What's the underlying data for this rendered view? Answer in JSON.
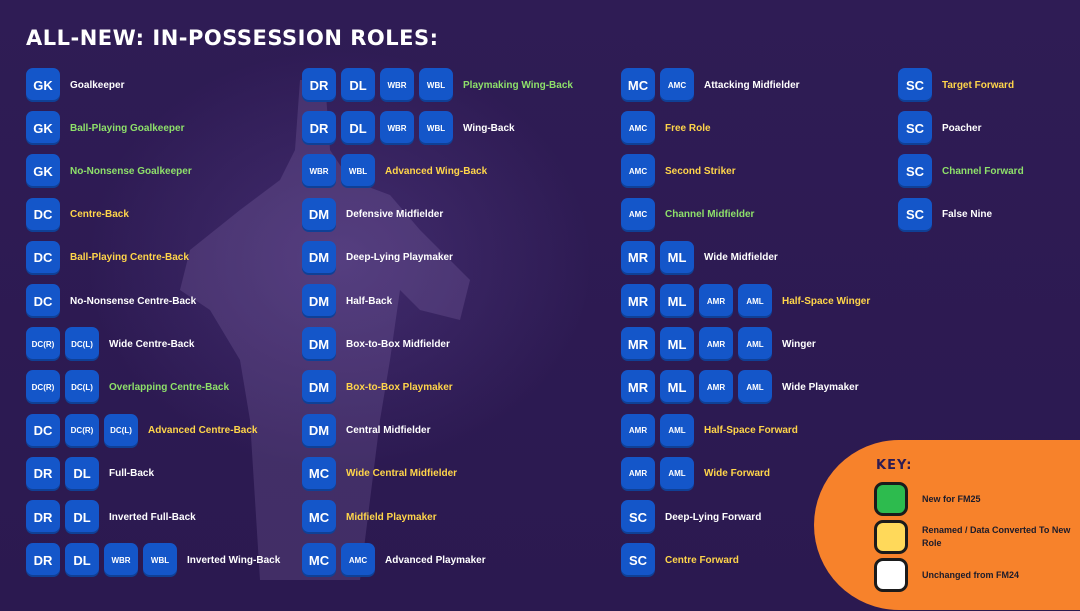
{
  "title": "ALL-NEW: IN-POSSESSION ROLES:",
  "colors": {
    "background": "#2e1b52",
    "badge": "#1456c9",
    "new": "#8ee06a",
    "renamed": "#ffd54a",
    "unchanged": "#ffffff",
    "key_panel": "#f7822b"
  },
  "columns": [
    [
      {
        "badges": [
          "GK"
        ],
        "label": "Goalkeeper",
        "status": "unchanged"
      },
      {
        "badges": [
          "GK"
        ],
        "label": "Ball-Playing Goalkeeper",
        "status": "new"
      },
      {
        "badges": [
          "GK"
        ],
        "label": "No-Nonsense Goalkeeper",
        "status": "new"
      },
      {
        "badges": [
          "DC"
        ],
        "label": "Centre-Back",
        "status": "renamed"
      },
      {
        "badges": [
          "DC"
        ],
        "label": "Ball-Playing Centre-Back",
        "status": "renamed"
      },
      {
        "badges": [
          "DC"
        ],
        "label": "No-Nonsense Centre-Back",
        "status": "unchanged"
      },
      {
        "badges": [
          "DC(R)",
          "DC(L)"
        ],
        "label": "Wide Centre-Back",
        "status": "unchanged"
      },
      {
        "badges": [
          "DC(R)",
          "DC(L)"
        ],
        "label": "Overlapping Centre-Back",
        "status": "new"
      },
      {
        "badges": [
          "DC",
          "DC(R)",
          "DC(L)"
        ],
        "label": "Advanced Centre-Back",
        "status": "renamed"
      },
      {
        "badges": [
          "DR",
          "DL"
        ],
        "label": "Full-Back",
        "status": "unchanged"
      },
      {
        "badges": [
          "DR",
          "DL"
        ],
        "label": "Inverted Full-Back",
        "status": "unchanged"
      },
      {
        "badges": [
          "DR",
          "DL",
          "WBR",
          "WBL"
        ],
        "label": "Inverted Wing-Back",
        "status": "unchanged"
      }
    ],
    [
      {
        "badges": [
          "DR",
          "DL",
          "WBR",
          "WBL"
        ],
        "label": "Playmaking Wing-Back",
        "status": "new"
      },
      {
        "badges": [
          "DR",
          "DL",
          "WBR",
          "WBL"
        ],
        "label": "Wing-Back",
        "status": "unchanged"
      },
      {
        "badges": [
          "WBR",
          "WBL"
        ],
        "label": "Advanced Wing-Back",
        "status": "renamed"
      },
      {
        "badges": [
          "DM"
        ],
        "label": "Defensive Midfielder",
        "status": "unchanged"
      },
      {
        "badges": [
          "DM"
        ],
        "label": "Deep-Lying Playmaker",
        "status": "unchanged"
      },
      {
        "badges": [
          "DM"
        ],
        "label": "Half-Back",
        "status": "unchanged"
      },
      {
        "badges": [
          "DM"
        ],
        "label": "Box-to-Box Midfielder",
        "status": "unchanged"
      },
      {
        "badges": [
          "DM"
        ],
        "label": "Box-to-Box Playmaker",
        "status": "renamed"
      },
      {
        "badges": [
          "DM"
        ],
        "label": "Central Midfielder",
        "status": "unchanged"
      },
      {
        "badges": [
          "MC"
        ],
        "label": "Wide Central Midfielder",
        "status": "renamed"
      },
      {
        "badges": [
          "MC"
        ],
        "label": "Midfield Playmaker",
        "status": "renamed"
      },
      {
        "badges": [
          "MC",
          "AMC"
        ],
        "label": "Advanced Playmaker",
        "status": "unchanged"
      }
    ],
    [
      {
        "badges": [
          "MC",
          "AMC"
        ],
        "label": "Attacking Midfielder",
        "status": "unchanged"
      },
      {
        "badges": [
          "AMC"
        ],
        "label": "Free Role",
        "status": "renamed"
      },
      {
        "badges": [
          "AMC"
        ],
        "label": "Second Striker",
        "status": "renamed"
      },
      {
        "badges": [
          "AMC"
        ],
        "label": "Channel Midfielder",
        "status": "new"
      },
      {
        "badges": [
          "MR",
          "ML"
        ],
        "label": "Wide Midfielder",
        "status": "unchanged"
      },
      {
        "badges": [
          "MR",
          "ML",
          "AMR",
          "AML"
        ],
        "label": "Half-Space Winger",
        "status": "renamed"
      },
      {
        "badges": [
          "MR",
          "ML",
          "AMR",
          "AML"
        ],
        "label": "Winger",
        "status": "unchanged"
      },
      {
        "badges": [
          "MR",
          "ML",
          "AMR",
          "AML"
        ],
        "label": "Wide Playmaker",
        "status": "unchanged"
      },
      {
        "badges": [
          "AMR",
          "AML"
        ],
        "label": "Half-Space Forward",
        "status": "renamed"
      },
      {
        "badges": [
          "AMR",
          "AML"
        ],
        "label": "Wide Forward",
        "status": "renamed"
      },
      {
        "badges": [
          "SC"
        ],
        "label": "Deep-Lying Forward",
        "status": "unchanged"
      },
      {
        "badges": [
          "SC"
        ],
        "label": "Centre Forward",
        "status": "renamed"
      }
    ],
    [
      {
        "badges": [
          "SC"
        ],
        "label": "Target Forward",
        "status": "renamed"
      },
      {
        "badges": [
          "SC"
        ],
        "label": "Poacher",
        "status": "unchanged"
      },
      {
        "badges": [
          "SC"
        ],
        "label": "Channel Forward",
        "status": "new"
      },
      {
        "badges": [
          "SC"
        ],
        "label": "False Nine",
        "status": "unchanged"
      }
    ]
  ],
  "key": {
    "title": "KEY:",
    "items": [
      {
        "status": "new",
        "color": "#2dbb4e",
        "label": "New for FM25"
      },
      {
        "status": "renamed",
        "color": "#ffd95a",
        "label": "Renamed / Data Converted To New Role"
      },
      {
        "status": "unchanged",
        "color": "#ffffff",
        "label": "Unchanged from FM24"
      }
    ]
  }
}
